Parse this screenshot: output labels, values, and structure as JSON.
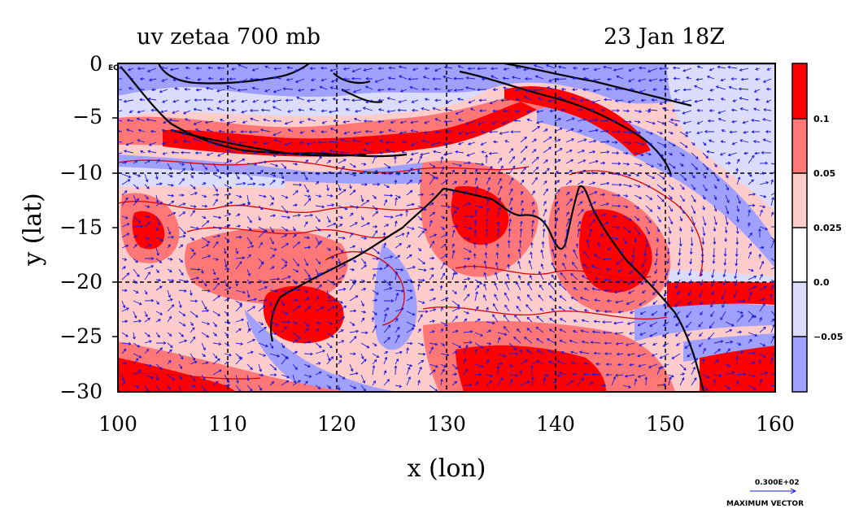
{
  "title_left": "uv zetaa 700 mb",
  "title_right": "23 Jan 18Z",
  "x_axis": {
    "label": "x (lon)",
    "ticks": [
      "100",
      "110",
      "120",
      "130",
      "140",
      "150",
      "160"
    ],
    "range": [
      100,
      160
    ]
  },
  "y_axis": {
    "label": "y (lat)",
    "ticks": [
      "0",
      "−5",
      "−10",
      "−15",
      "−20",
      "−25",
      "−30"
    ],
    "range": [
      -30,
      0
    ]
  },
  "eq_label": "EQ",
  "colorbar": {
    "levels": [
      "0.1",
      "0.05",
      "0.025",
      "0.0",
      "−0.05"
    ],
    "colors": [
      "#ff0000",
      "#ff7777",
      "#ffcccc",
      "#ffffff",
      "#dcdcff",
      "#a0a0ff"
    ]
  },
  "vector_legend": {
    "value": "0.300E+02",
    "label": "MAXIMUM VECTOR"
  },
  "colors": {
    "strong_pos": "#ff0000",
    "med_pos": "#ff7777",
    "weak_pos": "#ffcccc",
    "weak_neg": "#dcdcff",
    "strong_neg": "#a0a0ff",
    "contour": "#dd0000",
    "vector": "#1a1adc",
    "coast": "#000000"
  }
}
